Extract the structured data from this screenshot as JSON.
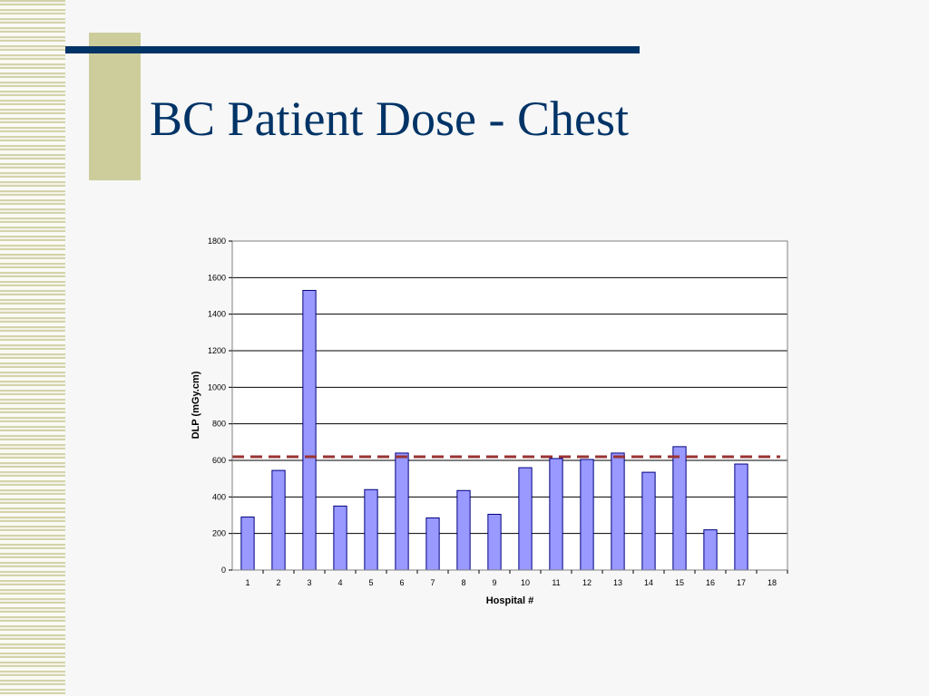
{
  "slide": {
    "title": "BC Patient Dose - Chest"
  },
  "colors": {
    "title": "#003366",
    "rule": "#003366",
    "accent_block": "#cdcd9c",
    "bar_fill": "#9999ff",
    "bar_stroke": "#000080",
    "reference_line": "#993333"
  },
  "chart_data": {
    "type": "bar",
    "xlabel": "Hospital #",
    "ylabel": "DLP (mGy.cm)",
    "categories": [
      "1",
      "2",
      "3",
      "4",
      "5",
      "6",
      "7",
      "8",
      "9",
      "10",
      "11",
      "12",
      "13",
      "14",
      "15",
      "16",
      "17",
      "18"
    ],
    "values": [
      290,
      545,
      1530,
      350,
      440,
      640,
      285,
      435,
      305,
      560,
      610,
      605,
      640,
      535,
      675,
      220,
      580,
      null
    ],
    "ylim": [
      0,
      1800
    ],
    "yticks": [
      "0",
      "200",
      "400",
      "600",
      "800",
      "1000",
      "1200",
      "1400",
      "1600",
      "1800"
    ],
    "grid": true,
    "legend": "none",
    "reference_line": {
      "value": 620,
      "style": "dashed"
    }
  }
}
